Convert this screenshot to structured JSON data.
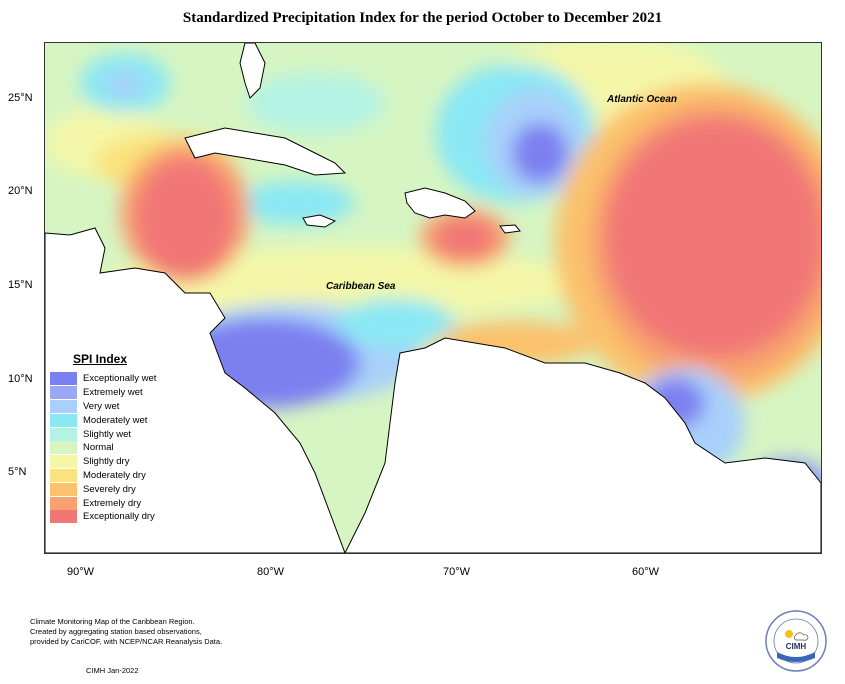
{
  "title": "Standardized Precipitation Index for the period October to December 2021",
  "lat_labels": [
    "25°N",
    "20°N",
    "15°N",
    "10°N",
    "5°N"
  ],
  "lon_labels": [
    "90°W",
    "80°W",
    "70°W",
    "60°W"
  ],
  "ocean_labels": {
    "atlantic": "Atlantic Ocean",
    "caribbean": "Caribbean Sea"
  },
  "legend": {
    "title": "SPI Index",
    "items": [
      {
        "label": "Exceptionally wet",
        "color": "#7b7ff0"
      },
      {
        "label": "Extremely wet",
        "color": "#9aa6f6"
      },
      {
        "label": "Very wet",
        "color": "#a9d0fa"
      },
      {
        "label": "Moderately wet",
        "color": "#8ae8f4"
      },
      {
        "label": "Slightly wet",
        "color": "#b4f3e4"
      },
      {
        "label": "Normal",
        "color": "#d6f5c2"
      },
      {
        "label": "Slightly dry",
        "color": "#f4f7a8"
      },
      {
        "label": "Moderately dry",
        "color": "#fae27c"
      },
      {
        "label": "Severely dry",
        "color": "#fbc16c"
      },
      {
        "label": "Extremely dry",
        "color": "#f8a06e"
      },
      {
        "label": "Exceptionally dry",
        "color": "#f17776"
      }
    ]
  },
  "footer": {
    "line1": "Climate Monitoring Map of the Caribbean Region.",
    "line2": "Created by aggregating station based observations,",
    "line3": "provided by CariCOF, with NCEP/NCAR Reanalysis Data.",
    "credit": "CIMH  Jan-2022"
  },
  "logo": {
    "text": "CIMH",
    "icon": "sun-cloud-icon"
  }
}
